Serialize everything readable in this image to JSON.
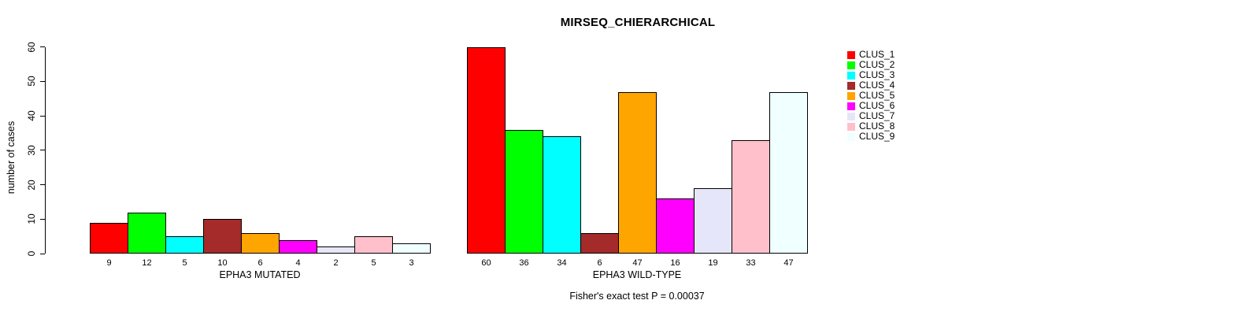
{
  "chart_data": {
    "type": "bar",
    "title": "MIRSEQ_CHIERARCHICAL",
    "ylabel": "number of cases",
    "ylim": [
      0,
      60
    ],
    "y_ticks": [
      0,
      10,
      20,
      30,
      40,
      50,
      60
    ],
    "grid": false,
    "legend_position": "right",
    "categories": [
      "EPHA3 MUTATED",
      "EPHA3 WILD-TYPE"
    ],
    "series": [
      {
        "name": "CLUS_1",
        "color": "#FF0000",
        "values": [
          9,
          60
        ]
      },
      {
        "name": "CLUS_2",
        "color": "#00FF00",
        "values": [
          12,
          36
        ]
      },
      {
        "name": "CLUS_3",
        "color": "#00FFFF",
        "values": [
          5,
          34
        ]
      },
      {
        "name": "CLUS_4",
        "color": "#A52A2A",
        "values": [
          10,
          6
        ]
      },
      {
        "name": "CLUS_5",
        "color": "#FFA500",
        "values": [
          6,
          47
        ]
      },
      {
        "name": "CLUS_6",
        "color": "#FF00FF",
        "values": [
          4,
          16
        ]
      },
      {
        "name": "CLUS_7",
        "color": "#E6E6FA",
        "values": [
          2,
          19
        ]
      },
      {
        "name": "CLUS_8",
        "color": "#FFC0CB",
        "values": [
          5,
          33
        ]
      },
      {
        "name": "CLUS_9",
        "color": "#F0FFFF",
        "values": [
          3,
          47
        ]
      }
    ],
    "bar_value_labels_shown": true,
    "annotation": "Fisher's exact test P = 0.00037"
  }
}
